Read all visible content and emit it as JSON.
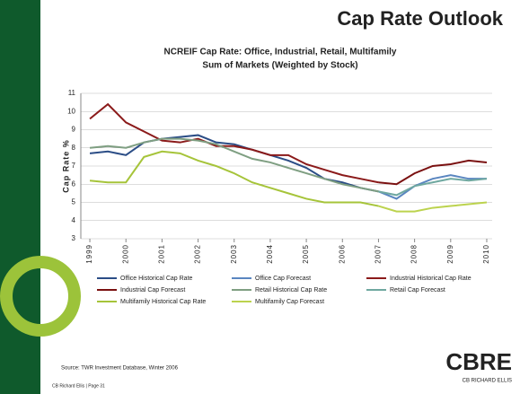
{
  "slide": {
    "title": "Cap Rate Outlook",
    "source": "Source: TWR Investment Database, Winter 2006",
    "footer": "CB Richard Ellis | Page 31",
    "logo": "CBRE",
    "logo_sub": "CB RICHARD ELLIS"
  },
  "chart_data": {
    "type": "line",
    "title": "NCREIF Cap Rate: Office, Industrial, Retail, Multifamily",
    "subtitle": "Sum of Markets (Weighted by Stock)",
    "y_label": "Cap Rate %",
    "xlim": [
      1998.75,
      2010.15
    ],
    "xticks": [
      1999,
      2000,
      2001,
      2002,
      2003,
      2004,
      2005,
      2006,
      2007,
      2008,
      2009,
      2010
    ],
    "ylim": [
      3,
      11
    ],
    "yticks": [
      3,
      4,
      5,
      6,
      7,
      8,
      9,
      10,
      11
    ],
    "grid": true,
    "series": [
      {
        "name": "Office Historical Cap Rate",
        "color": "#2b4d86",
        "x": [
          1999,
          1999.5,
          2000,
          2000.5,
          2001,
          2001.5,
          2002,
          2002.5,
          2003,
          2003.5,
          2004,
          2004.5,
          2005,
          2005.5,
          2006,
          2006.5,
          2007
        ],
        "values": [
          7.7,
          7.8,
          7.6,
          8.3,
          8.5,
          8.6,
          8.7,
          8.3,
          8.2,
          7.9,
          7.6,
          7.3,
          6.9,
          6.3,
          6.1,
          5.8,
          5.6
        ]
      },
      {
        "name": "Office Cap Forecast",
        "color": "#5a86c0",
        "x": [
          2007,
          2007.5,
          2008,
          2008.5,
          2009,
          2009.5,
          2010
        ],
        "values": [
          5.6,
          5.2,
          5.9,
          6.3,
          6.5,
          6.3,
          6.3
        ]
      },
      {
        "name": "Industrial Historical Cap Rate",
        "color": "#8b1a1a",
        "x": [
          1999,
          1999.5,
          2000,
          2000.5,
          2001,
          2001.5,
          2002,
          2002.5,
          2003,
          2003.5,
          2004,
          2004.5,
          2005,
          2005.5,
          2006,
          2006.5,
          2007
        ],
        "values": [
          9.6,
          10.4,
          9.4,
          8.9,
          8.4,
          8.3,
          8.5,
          8.1,
          8.1,
          7.9,
          7.6,
          7.6,
          7.1,
          6.8,
          6.5,
          6.3,
          6.1
        ]
      },
      {
        "name": "Industrial Cap Forecast",
        "color": "#7a1010",
        "x": [
          2007,
          2007.5,
          2008,
          2008.5,
          2009,
          2009.5,
          2010
        ],
        "values": [
          6.1,
          6.0,
          6.6,
          7.0,
          7.1,
          7.3,
          7.2
        ]
      },
      {
        "name": "Retail Historical Cap Rate",
        "color": "#7f9f82",
        "x": [
          1999,
          1999.5,
          2000,
          2000.5,
          2001,
          2001.5,
          2002,
          2002.5,
          2003,
          2003.5,
          2004,
          2004.5,
          2005,
          2005.5,
          2006,
          2006.5,
          2007
        ],
        "values": [
          8.0,
          8.1,
          8.0,
          8.3,
          8.5,
          8.5,
          8.4,
          8.2,
          7.8,
          7.4,
          7.2,
          6.9,
          6.6,
          6.3,
          6.0,
          5.8,
          5.6
        ]
      },
      {
        "name": "Retail Cap Forecast",
        "color": "#6fa8a0",
        "x": [
          2007,
          2007.5,
          2008,
          2008.5,
          2009,
          2009.5,
          2010
        ],
        "values": [
          5.6,
          5.4,
          5.9,
          6.1,
          6.3,
          6.2,
          6.3
        ]
      },
      {
        "name": "Multifamily Historical Cap Rate",
        "color": "#a6c43a",
        "x": [
          1999,
          1999.5,
          2000,
          2000.5,
          2001,
          2001.5,
          2002,
          2002.5,
          2003,
          2003.5,
          2004,
          2004.5,
          2005,
          2005.5,
          2006,
          2006.5,
          2007
        ],
        "values": [
          6.2,
          6.1,
          6.1,
          7.5,
          7.8,
          7.7,
          7.3,
          7.0,
          6.6,
          6.1,
          5.8,
          5.5,
          5.2,
          5.0,
          5.0,
          5.0,
          4.8
        ]
      },
      {
        "name": "Multifamily Cap Forecast",
        "color": "#bcd34e",
        "x": [
          2007,
          2007.5,
          2008,
          2008.5,
          2009,
          2009.5,
          2010
        ],
        "values": [
          4.8,
          4.5,
          4.5,
          4.7,
          4.8,
          4.9,
          5.0
        ]
      }
    ]
  }
}
